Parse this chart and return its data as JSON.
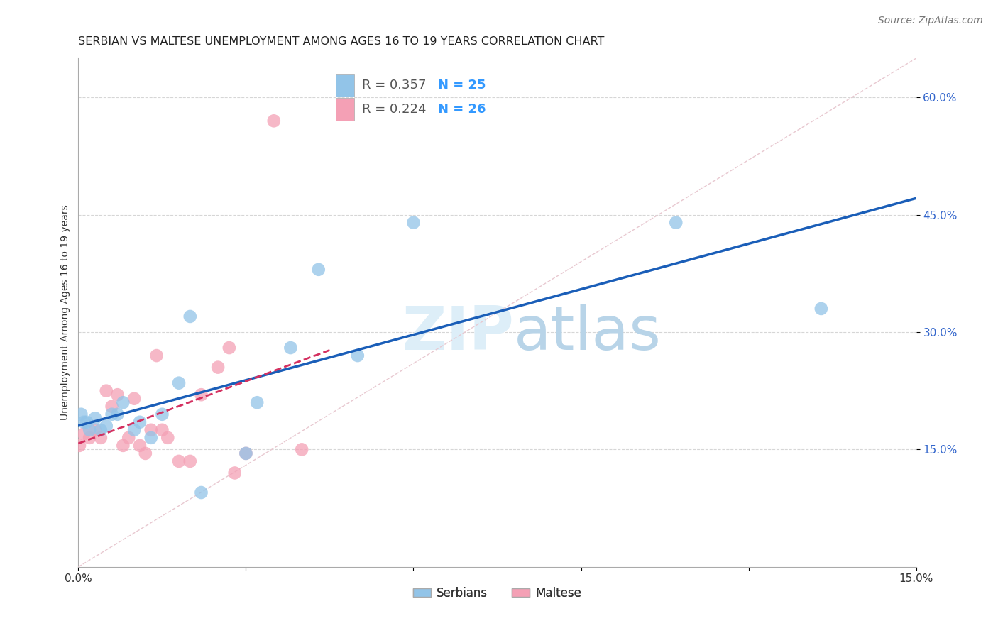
{
  "title": "SERBIAN VS MALTESE UNEMPLOYMENT AMONG AGES 16 TO 19 YEARS CORRELATION CHART",
  "source": "Source: ZipAtlas.com",
  "ylabel": "Unemployment Among Ages 16 to 19 years",
  "xlim": [
    0.0,
    0.15
  ],
  "ylim": [
    0.0,
    0.65
  ],
  "serbian_R": 0.357,
  "serbian_N": 25,
  "maltese_R": 0.224,
  "maltese_N": 26,
  "serbian_color": "#92c4e8",
  "maltese_color": "#f4a0b5",
  "trend_serbian_color": "#1a5eb8",
  "trend_maltese_color": "#d43060",
  "watermark_color": "#ddeef8",
  "background_color": "#ffffff",
  "grid_color": "#cccccc",
  "title_fontsize": 11.5,
  "axis_label_fontsize": 10,
  "legend_fontsize": 13,
  "tick_fontsize": 11,
  "source_fontsize": 10,
  "serbian_x": [
    0.0005,
    0.001,
    0.0015,
    0.002,
    0.003,
    0.004,
    0.005,
    0.006,
    0.007,
    0.008,
    0.01,
    0.011,
    0.013,
    0.015,
    0.018,
    0.02,
    0.022,
    0.03,
    0.032,
    0.038,
    0.043,
    0.05,
    0.06,
    0.107,
    0.133
  ],
  "serbian_y": [
    0.195,
    0.185,
    0.185,
    0.175,
    0.19,
    0.175,
    0.18,
    0.195,
    0.195,
    0.21,
    0.175,
    0.185,
    0.165,
    0.195,
    0.235,
    0.32,
    0.095,
    0.145,
    0.21,
    0.28,
    0.38,
    0.27,
    0.44,
    0.44,
    0.33
  ],
  "maltese_x": [
    0.0002,
    0.001,
    0.002,
    0.003,
    0.004,
    0.005,
    0.006,
    0.007,
    0.008,
    0.009,
    0.01,
    0.011,
    0.012,
    0.013,
    0.014,
    0.015,
    0.016,
    0.018,
    0.02,
    0.022,
    0.025,
    0.027,
    0.028,
    0.03,
    0.035,
    0.04
  ],
  "maltese_y": [
    0.155,
    0.17,
    0.165,
    0.175,
    0.165,
    0.225,
    0.205,
    0.22,
    0.155,
    0.165,
    0.215,
    0.155,
    0.145,
    0.175,
    0.27,
    0.175,
    0.165,
    0.135,
    0.135,
    0.22,
    0.255,
    0.28,
    0.12,
    0.145,
    0.57,
    0.15
  ]
}
